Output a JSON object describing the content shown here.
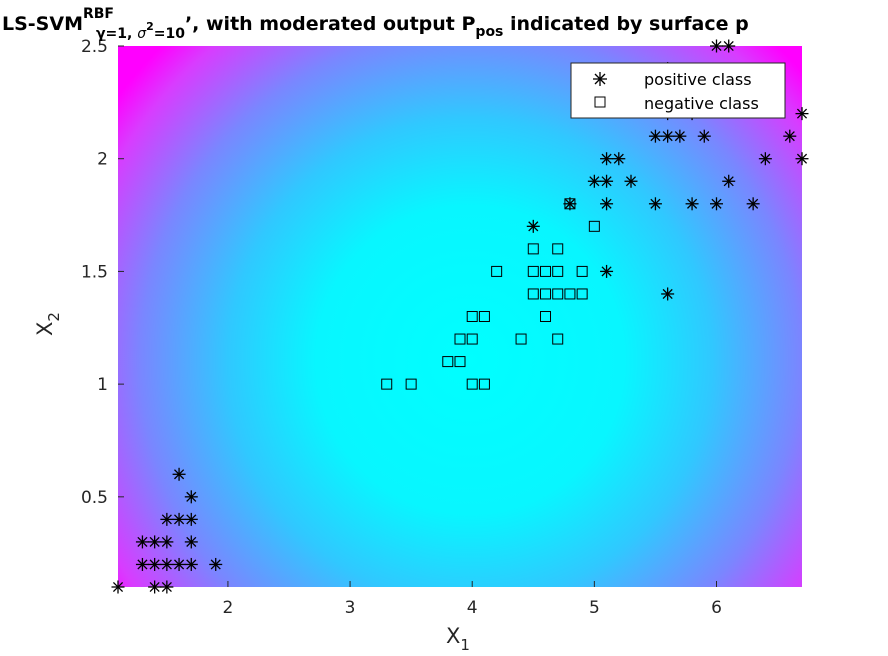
{
  "chart_data": {
    "type": "scatter",
    "title": {
      "prefix": "LS-SVM",
      "sup": "RBF",
      "sub_gamma": "γ=1, ",
      "sub_sigma": "σ",
      "sub_sigma_sup": "2",
      "sub_sigma_rest": "=10",
      "middle": "’, with moderated output P",
      "pos_sub": "pos",
      "suffix": " indicated by surface p"
    },
    "xlabel": "X",
    "xlabel_sub": "1",
    "ylabel": "X",
    "ylabel_sub": "2",
    "xlim": [
      1.1,
      6.7
    ],
    "ylim": [
      0.1,
      2.5
    ],
    "xticks": [
      2,
      3,
      4,
      5,
      6
    ],
    "yticks": [
      0.5,
      1,
      1.5,
      2,
      2.5
    ],
    "xtick_labels": [
      "2",
      "3",
      "4",
      "5",
      "6"
    ],
    "ytick_labels": [
      "0.5",
      "1",
      "1.5",
      "2",
      "2.5"
    ],
    "legend": {
      "position": "top-right",
      "entries": [
        "positive class",
        "negative class"
      ]
    },
    "background": {
      "description_colors": [
        "#ff00ff",
        "#00ffff"
      ],
      "colormap": "cool"
    },
    "series": [
      {
        "name": "positive class",
        "marker": "asterisk",
        "points": [
          [
            1.1,
            0.1
          ],
          [
            1.4,
            0.1
          ],
          [
            1.5,
            0.1
          ],
          [
            1.3,
            0.2
          ],
          [
            1.4,
            0.2
          ],
          [
            1.5,
            0.2
          ],
          [
            1.6,
            0.2
          ],
          [
            1.7,
            0.2
          ],
          [
            1.9,
            0.2
          ],
          [
            1.3,
            0.3
          ],
          [
            1.4,
            0.3
          ],
          [
            1.5,
            0.3
          ],
          [
            1.7,
            0.3
          ],
          [
            1.5,
            0.4
          ],
          [
            1.6,
            0.4
          ],
          [
            1.7,
            0.4
          ],
          [
            1.7,
            0.5
          ],
          [
            1.6,
            0.6
          ],
          [
            4.8,
            1.8
          ],
          [
            4.5,
            1.7
          ],
          [
            5.1,
            1.5
          ],
          [
            5.6,
            1.4
          ],
          [
            5.1,
            1.8
          ],
          [
            5.5,
            1.8
          ],
          [
            5.8,
            1.8
          ],
          [
            6.0,
            1.8
          ],
          [
            6.3,
            1.8
          ],
          [
            5.0,
            1.9
          ],
          [
            5.1,
            1.9
          ],
          [
            5.3,
            1.9
          ],
          [
            6.1,
            1.9
          ],
          [
            5.1,
            2.0
          ],
          [
            5.2,
            2.0
          ],
          [
            6.4,
            2.0
          ],
          [
            6.7,
            2.0
          ],
          [
            5.5,
            2.1
          ],
          [
            5.6,
            2.1
          ],
          [
            5.7,
            2.1
          ],
          [
            5.9,
            2.1
          ],
          [
            6.6,
            2.1
          ],
          [
            5.6,
            2.2
          ],
          [
            6.7,
            2.2
          ],
          [
            5.8,
            2.2
          ],
          [
            5.4,
            2.3
          ],
          [
            6.1,
            2.3
          ],
          [
            5.6,
            2.4
          ],
          [
            6.0,
            2.5
          ],
          [
            6.1,
            2.5
          ]
        ]
      },
      {
        "name": "negative class",
        "marker": "square",
        "points": [
          [
            3.3,
            1.0
          ],
          [
            3.5,
            1.0
          ],
          [
            4.0,
            1.0
          ],
          [
            4.1,
            1.0
          ],
          [
            3.8,
            1.1
          ],
          [
            3.9,
            1.1
          ],
          [
            3.9,
            1.2
          ],
          [
            4.0,
            1.2
          ],
          [
            4.4,
            1.2
          ],
          [
            4.7,
            1.2
          ],
          [
            4.0,
            1.3
          ],
          [
            4.1,
            1.3
          ],
          [
            4.6,
            1.3
          ],
          [
            4.5,
            1.4
          ],
          [
            4.6,
            1.4
          ],
          [
            4.7,
            1.4
          ],
          [
            4.8,
            1.4
          ],
          [
            4.9,
            1.4
          ],
          [
            4.2,
            1.5
          ],
          [
            4.5,
            1.5
          ],
          [
            4.6,
            1.5
          ],
          [
            4.7,
            1.5
          ],
          [
            4.9,
            1.5
          ],
          [
            4.5,
            1.6
          ],
          [
            4.7,
            1.6
          ],
          [
            5.0,
            1.7
          ],
          [
            4.8,
            1.8
          ]
        ]
      }
    ]
  }
}
